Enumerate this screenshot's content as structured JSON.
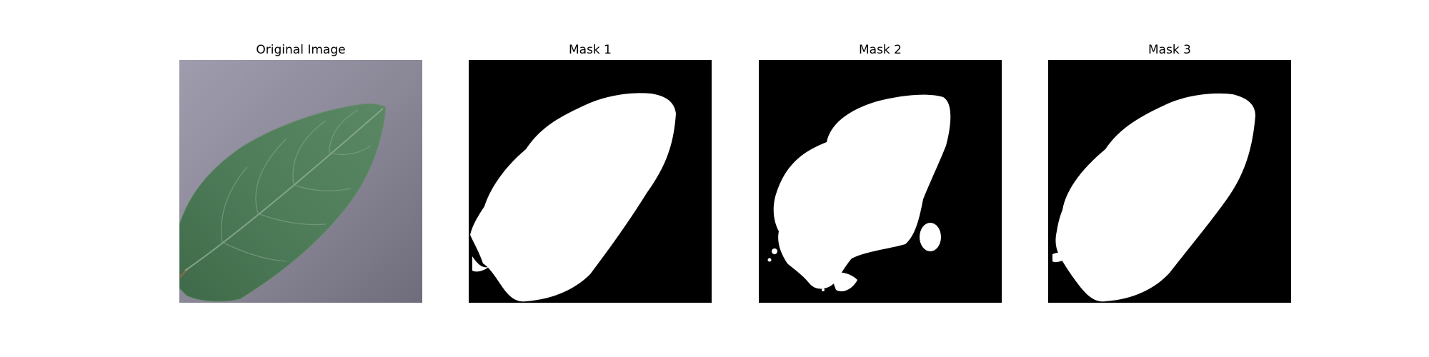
{
  "figure": {
    "panels": [
      {
        "title": "Original Image",
        "kind": "photo"
      },
      {
        "title": "Mask 1",
        "kind": "mask"
      },
      {
        "title": "Mask 2",
        "kind": "mask"
      },
      {
        "title": "Mask 3",
        "kind": "mask"
      }
    ],
    "colors": {
      "background": "#ffffff",
      "mask_foreground": "#ffffff",
      "mask_background": "#000000",
      "leaf_green": "#4d7a57",
      "surface_gray": "#8f8c9c"
    }
  }
}
